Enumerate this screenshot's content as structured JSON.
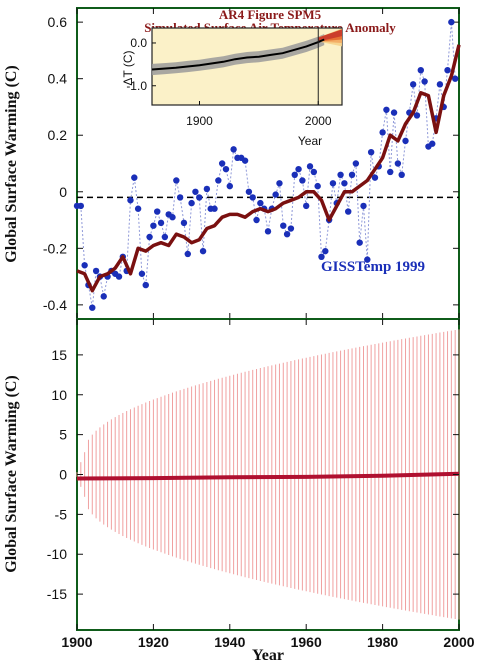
{
  "colors": {
    "frame": "#0f5c1a",
    "observed_points": "#1a2fb8",
    "observed_dashes": "#8e98d8",
    "model_mean": "#7a1010",
    "spread": "#f0a0a0",
    "inset_bg": "#fbf1c8",
    "inset_band": "#9a9a9a",
    "inset_line": "#000000",
    "inset_future": "#e0602a",
    "zero_line": "#000000"
  },
  "chart_data": [
    {
      "type": "line",
      "panel": "top",
      "ylabel": "Global Surface Warming (C)",
      "xlim": [
        1900,
        2000
      ],
      "ylim": [
        -0.45,
        0.65
      ],
      "yticks": [
        -0.4,
        -0.2,
        0,
        0.2,
        0.4,
        0.6
      ],
      "ytick_labels": [
        "-0.4",
        "-0.2",
        "0",
        "0.2",
        "0.4",
        "0.6"
      ],
      "reference_line": -0.02,
      "legend_label": "GISSTemp 1999",
      "legend_position": "bottom-right",
      "series": [
        {
          "name": "GISSTemp 1999",
          "style": "points-dashed",
          "x": [
            1900,
            1901,
            1902,
            1903,
            1904,
            1905,
            1906,
            1907,
            1908,
            1909,
            1910,
            1911,
            1912,
            1913,
            1914,
            1915,
            1916,
            1917,
            1918,
            1919,
            1920,
            1921,
            1922,
            1923,
            1924,
            1925,
            1926,
            1927,
            1928,
            1929,
            1930,
            1931,
            1932,
            1933,
            1934,
            1935,
            1936,
            1937,
            1938,
            1939,
            1940,
            1941,
            1942,
            1943,
            1944,
            1945,
            1946,
            1947,
            1948,
            1949,
            1950,
            1951,
            1952,
            1953,
            1954,
            1955,
            1956,
            1957,
            1958,
            1959,
            1960,
            1961,
            1962,
            1963,
            1964,
            1965,
            1966,
            1967,
            1968,
            1969,
            1970,
            1971,
            1972,
            1973,
            1974,
            1975,
            1976,
            1977,
            1978,
            1979,
            1980,
            1981,
            1982,
            1983,
            1984,
            1985,
            1986,
            1987,
            1988,
            1989,
            1990,
            1991,
            1992,
            1993,
            1994,
            1995,
            1996,
            1997,
            1998,
            1999
          ],
          "y": [
            -0.05,
            -0.05,
            -0.26,
            -0.33,
            -0.41,
            -0.28,
            -0.3,
            -0.37,
            -0.3,
            -0.28,
            -0.29,
            -0.3,
            -0.23,
            -0.28,
            -0.03,
            0.05,
            -0.06,
            -0.29,
            -0.33,
            -0.16,
            -0.12,
            -0.07,
            -0.11,
            -0.16,
            -0.08,
            -0.09,
            0.04,
            -0.02,
            -0.11,
            -0.22,
            -0.04,
            0.0,
            -0.02,
            -0.21,
            0.01,
            -0.06,
            -0.06,
            0.04,
            0.1,
            0.08,
            0.02,
            0.15,
            0.12,
            0.12,
            0.11,
            0.0,
            -0.02,
            -0.1,
            -0.04,
            -0.06,
            -0.14,
            -0.06,
            -0.01,
            0.03,
            -0.12,
            -0.15,
            -0.13,
            0.06,
            0.08,
            0.04,
            -0.05,
            0.09,
            0.07,
            0.02,
            -0.23,
            -0.21,
            -0.1,
            0.03,
            -0.04,
            0.06,
            0.03,
            -0.07,
            0.06,
            0.1,
            -0.18,
            -0.05,
            -0.24,
            0.14,
            0.05,
            0.09,
            0.21,
            0.29,
            0.07,
            0.28,
            0.1,
            0.06,
            0.18,
            0.28,
            0.38,
            0.27,
            0.43,
            0.39,
            0.16,
            0.17,
            0.26,
            0.38,
            0.3,
            0.43,
            0.6,
            0.4
          ]
        },
        {
          "name": "",
          "style": "thick-line",
          "x": [
            1900,
            1902,
            1904,
            1906,
            1908,
            1910,
            1912,
            1914,
            1916,
            1918,
            1920,
            1922,
            1924,
            1926,
            1928,
            1930,
            1932,
            1934,
            1936,
            1938,
            1940,
            1942,
            1944,
            1946,
            1948,
            1950,
            1952,
            1954,
            1956,
            1958,
            1960,
            1962,
            1964,
            1966,
            1968,
            1970,
            1972,
            1974,
            1976,
            1978,
            1980,
            1982,
            1984,
            1986,
            1988,
            1990,
            1992,
            1994,
            1996,
            1998,
            2000
          ],
          "y": [
            -0.28,
            -0.29,
            -0.35,
            -0.3,
            -0.29,
            -0.27,
            -0.23,
            -0.29,
            -0.2,
            -0.21,
            -0.19,
            -0.18,
            -0.19,
            -0.15,
            -0.16,
            -0.18,
            -0.17,
            -0.13,
            -0.12,
            -0.09,
            -0.08,
            -0.08,
            -0.09,
            -0.07,
            -0.06,
            -0.07,
            -0.06,
            -0.04,
            -0.03,
            -0.02,
            0.0,
            0.0,
            -0.03,
            -0.1,
            -0.05,
            0.0,
            0.0,
            0.02,
            0.04,
            0.08,
            0.12,
            0.2,
            0.18,
            0.24,
            0.28,
            0.35,
            0.34,
            0.21,
            0.34,
            0.41,
            0.52
          ]
        }
      ]
    },
    {
      "type": "line",
      "panel": "bottom",
      "ylabel": "Global Surface Warming (C)",
      "xlabel": "Year",
      "xlim": [
        1900,
        2000
      ],
      "ylim": [
        -19.5,
        19.5
      ],
      "yticks": [
        -15,
        -10,
        -5,
        0,
        5,
        10,
        15
      ],
      "ytick_labels": [
        "-15",
        "-10",
        "-5",
        "0",
        "5",
        "10",
        "15"
      ],
      "xticks": [
        1900,
        1920,
        1940,
        1960,
        1980,
        2000
      ],
      "xtick_labels": [
        "1900",
        "1920",
        "1940",
        "1960",
        "1980",
        "2000"
      ],
      "spread_envelope": {
        "start_year": 1900,
        "start_halfwidth": 0.3,
        "halfwidth_1902": 2.8,
        "end_year": 2000,
        "end_halfwidth": 18.2
      },
      "series": [
        {
          "name": "",
          "style": "thick-line",
          "x": [
            1900,
            1920,
            1940,
            1960,
            1980,
            2000
          ],
          "y": [
            -0.5,
            -0.45,
            -0.35,
            -0.3,
            -0.15,
            0.1
          ]
        }
      ]
    },
    {
      "type": "area",
      "panel": "inset",
      "title_lines": [
        "AR4 Figure SPM5",
        "Simulated Surface Air Temperature Anomaly"
      ],
      "ylabel": "ΔT (C)",
      "xlabel": "Year",
      "xlim": [
        1860,
        2020
      ],
      "ylim": [
        -1.45,
        0.35
      ],
      "yticks": [
        0.0,
        -1.0
      ],
      "ytick_labels": [
        "0.0",
        "-1.0"
      ],
      "xticks": [
        1900,
        2000
      ],
      "xtick_labels": [
        "1900",
        "2000"
      ],
      "vertical_marker": 2000,
      "series": [
        {
          "name": "",
          "x": [
            1860,
            1870,
            1880,
            1890,
            1900,
            1910,
            1920,
            1930,
            1940,
            1950,
            1960,
            1970,
            1980,
            1990,
            2000,
            2005
          ],
          "y": [
            -0.62,
            -0.6,
            -0.58,
            -0.55,
            -0.52,
            -0.48,
            -0.44,
            -0.38,
            -0.34,
            -0.32,
            -0.28,
            -0.24,
            -0.16,
            -0.08,
            0.02,
            0.08
          ]
        }
      ]
    }
  ]
}
